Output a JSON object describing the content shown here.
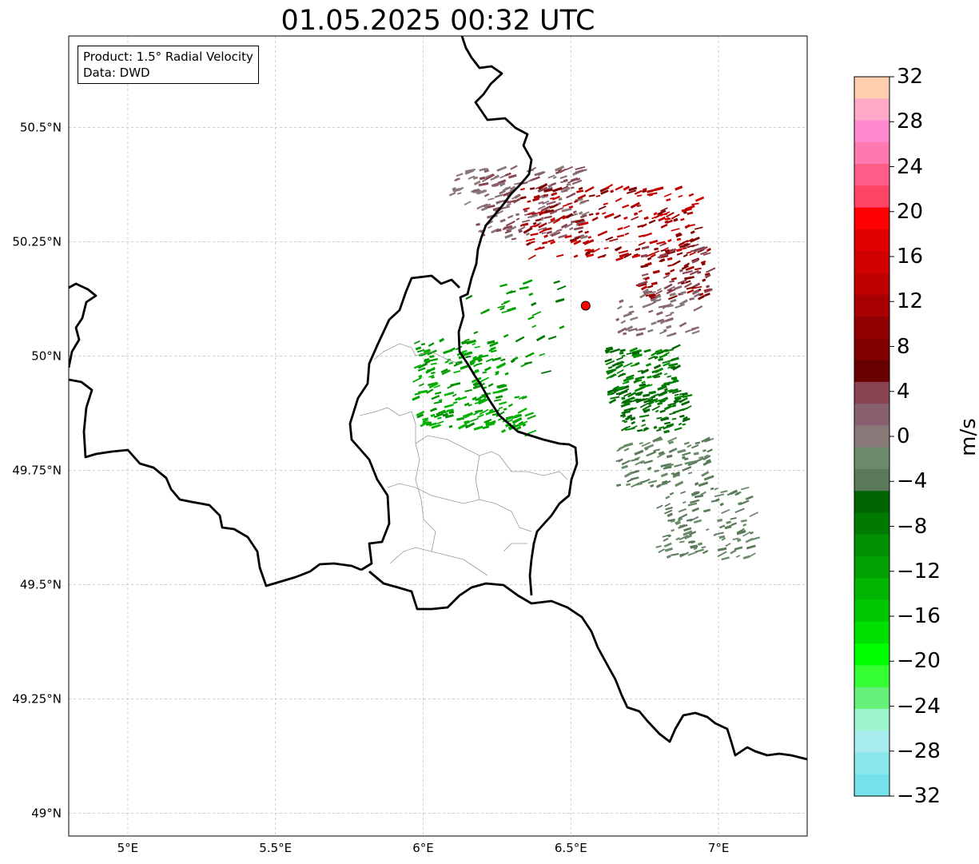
{
  "title": "01.05.2025 00:32 UTC",
  "info": {
    "product": "Product: 1.5° Radial Velocity",
    "data": "Data: DWD"
  },
  "axes": {
    "lat_ticks": [
      "50.5°N",
      "50.25°N",
      "50°N",
      "49.75°N",
      "49.5°N",
      "49.25°N",
      "49°N"
    ],
    "lon_ticks": [
      "5°E",
      "5.5°E",
      "6°E",
      "6.5°E",
      "7°E"
    ],
    "lon_range": [
      4.8,
      7.3
    ],
    "lat_range": [
      48.95,
      50.7
    ]
  },
  "colorbar": {
    "label": "m/s",
    "ticks": [
      "32",
      "28",
      "24",
      "20",
      "16",
      "12",
      "8",
      "4",
      "0",
      "−4",
      "−8",
      "−12",
      "−16",
      "−20",
      "−24",
      "−28",
      "−32"
    ],
    "colors_top_to_bottom": [
      "#ffcfb0",
      "#ffa8c8",
      "#ff88d0",
      "#ff78b0",
      "#ff5c88",
      "#ff4466",
      "#ff0000",
      "#e00000",
      "#d00000",
      "#c00000",
      "#a80000",
      "#900000",
      "#800000",
      "#680000",
      "#884450",
      "#886070",
      "#887878",
      "#6a8a6a",
      "#5a7a5a",
      "#006400",
      "#007a00",
      "#009000",
      "#00a000",
      "#00b400",
      "#00c800",
      "#00e000",
      "#00ff00",
      "#33ff33",
      "#66f07a",
      "#9ef4cc",
      "#a8ecf0",
      "#88e8ec",
      "#74e2e8"
    ]
  },
  "radar_site": {
    "lon": 6.55,
    "lat": 50.11,
    "color": "#ff0000"
  }
}
